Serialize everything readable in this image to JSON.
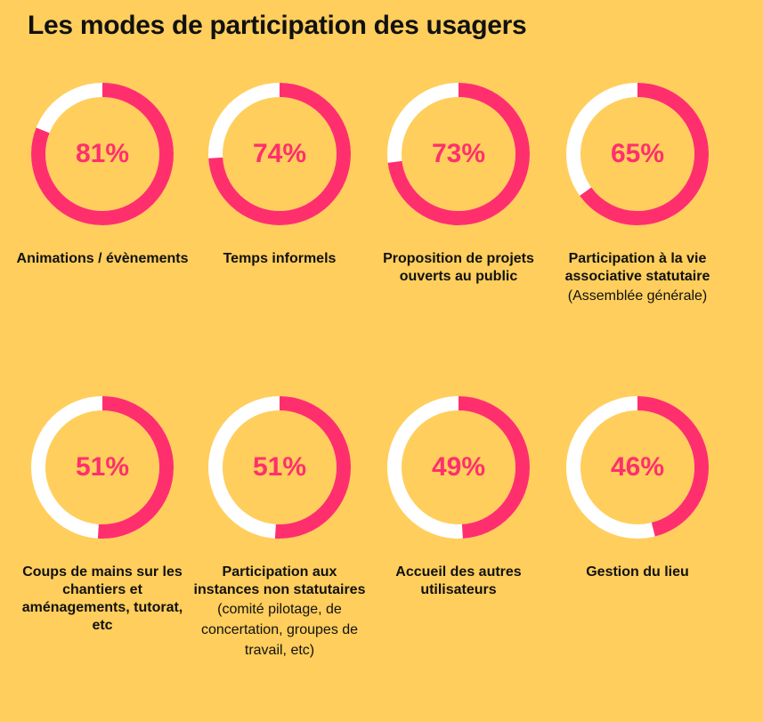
{
  "header": {
    "title": "Les modes de participation des usagers"
  },
  "colors": {
    "background": "#FFCE5C",
    "accent": "#FF2F6D",
    "track": "#FFFFFF"
  },
  "chart_data": {
    "type": "pie",
    "title": "Les modes de participation des usagers",
    "unit": "%",
    "items": [
      {
        "label": "Animations / évènements",
        "note": "",
        "value": 81,
        "display": "81%"
      },
      {
        "label": "Temps informels",
        "note": "",
        "value": 74,
        "display": "74%"
      },
      {
        "label": "Proposition de projets ouverts au public",
        "note": "",
        "value": 73,
        "display": "73%"
      },
      {
        "label": "Participation à la vie associative statutaire",
        "note": "(Assemblée générale)",
        "value": 65,
        "display": "65%"
      },
      {
        "label": "Coups de mains sur les chantiers et aménagements, tutorat, etc",
        "note": "",
        "value": 51,
        "display": "51%"
      },
      {
        "label": "Participation aux instances non statutaires",
        "note": "(comité pilotage, de concertation, groupes de travail, etc)",
        "value": 51,
        "display": "51%"
      },
      {
        "label": "Accueil des autres utilisateurs",
        "note": "",
        "value": 49,
        "display": "49%"
      },
      {
        "label": "Gestion du lieu",
        "note": "",
        "value": 46,
        "display": "46%"
      }
    ]
  }
}
